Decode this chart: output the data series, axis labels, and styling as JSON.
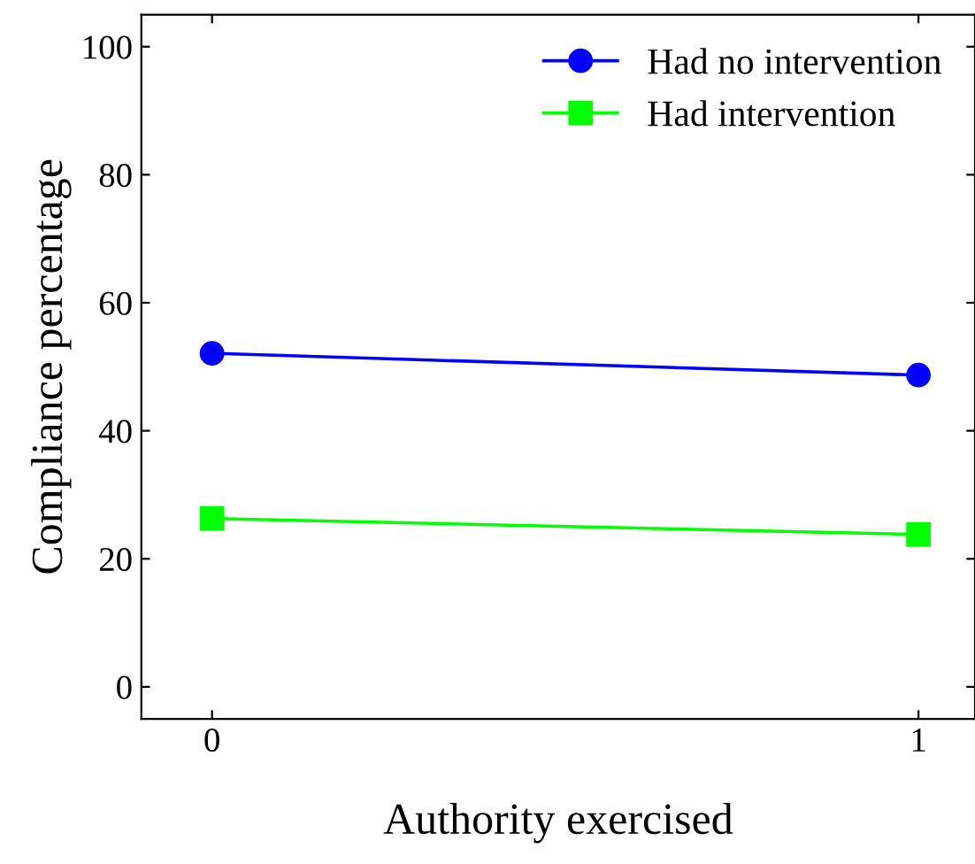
{
  "chart_data": {
    "type": "line",
    "xlabel": "Authority exercised",
    "ylabel": "Compliance percentage",
    "x": [
      0,
      1
    ],
    "xlim": [
      -0.1,
      1.08
    ],
    "xticks": [
      0,
      1
    ],
    "ylim": [
      -5,
      105
    ],
    "yticks": [
      0,
      20,
      40,
      60,
      80,
      100
    ],
    "series": [
      {
        "name": "Had no intervention",
        "color": "#0000ff",
        "values": [
          52.1,
          48.7
        ],
        "marker": "circle"
      },
      {
        "name": "Had intervention",
        "color": "#00ff00",
        "values": [
          26.3,
          23.8
        ],
        "marker": "square"
      }
    ],
    "legend": "top right",
    "grid": false,
    "line_style": "solid"
  }
}
